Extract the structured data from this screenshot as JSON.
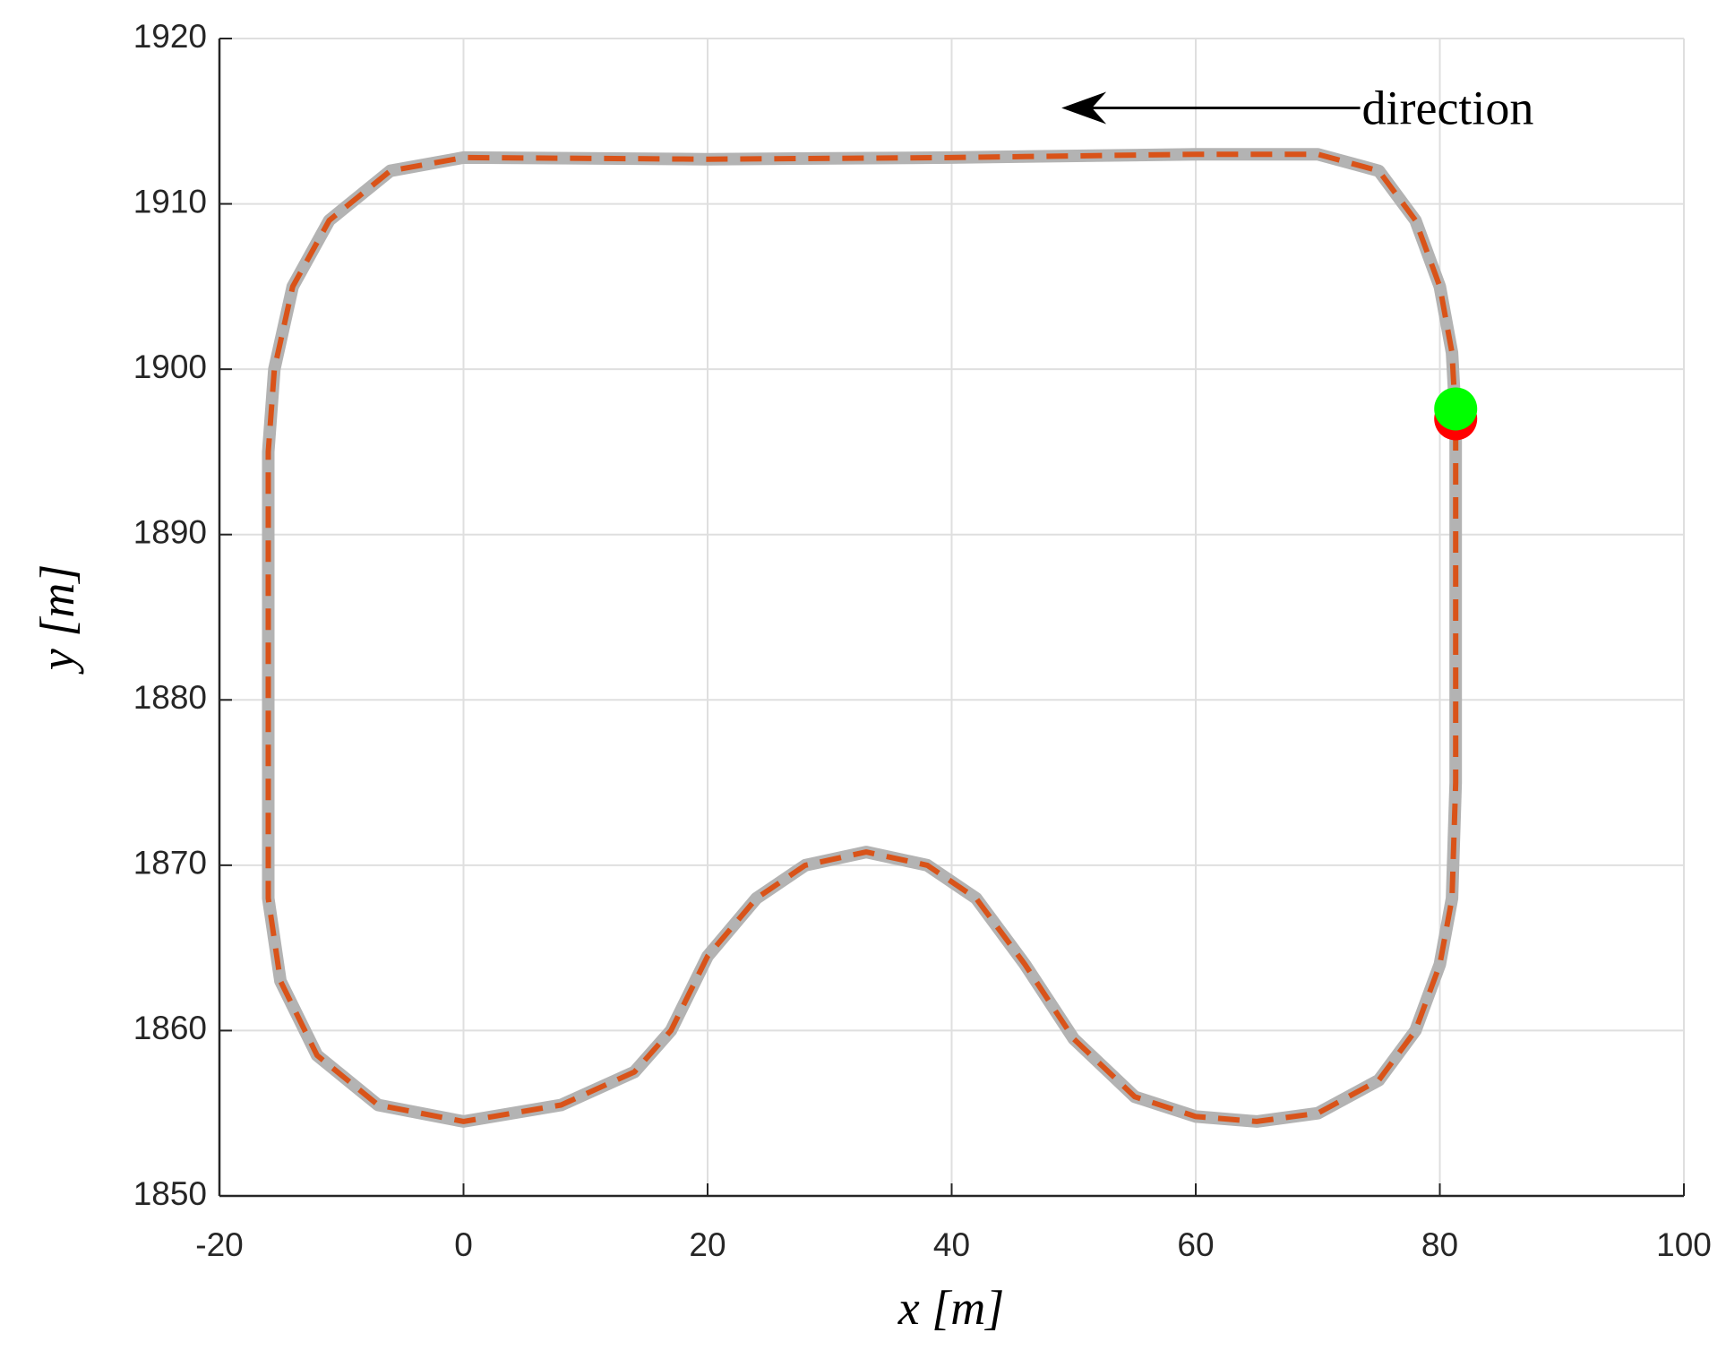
{
  "chart_data": {
    "type": "line",
    "xlabel": "x [m]",
    "ylabel": "y [m]",
    "x": [
      81.3,
      81,
      80,
      78,
      75,
      70,
      60,
      40,
      20,
      0,
      -6,
      -11,
      -14,
      -15.5,
      -16,
      -16,
      -16,
      -15,
      -12,
      -7,
      0,
      8,
      14,
      17,
      20,
      24,
      28,
      33,
      38,
      42,
      46,
      50,
      55,
      60,
      65,
      70,
      75,
      78,
      80,
      81,
      81.3,
      81.3,
      81.3
    ],
    "series": [
      {
        "color": "#b3b3b3",
        "style": "solid",
        "width": 14,
        "values": [
          1897,
          1901,
          1905,
          1909,
          1912,
          1913,
          1913,
          1912.8,
          1912.7,
          1912.8,
          1912,
          1909,
          1905,
          1900,
          1895,
          1880,
          1868,
          1863,
          1858.5,
          1855.5,
          1854.5,
          1855.5,
          1857.5,
          1860,
          1864.5,
          1868,
          1870,
          1870.8,
          1870,
          1868,
          1864,
          1859.5,
          1856,
          1854.8,
          1854.5,
          1855,
          1857,
          1860,
          1864,
          1868,
          1875,
          1885,
          1897
        ]
      },
      {
        "color": "#d95319",
        "style": "dashed",
        "width": 6,
        "values": [
          1897,
          1901,
          1905,
          1909,
          1912,
          1913,
          1913,
          1912.8,
          1912.7,
          1912.8,
          1912,
          1909,
          1905,
          1900,
          1895,
          1880,
          1868,
          1863,
          1858.5,
          1855.5,
          1854.5,
          1855.5,
          1857.5,
          1860,
          1864.5,
          1868,
          1870,
          1870.8,
          1870,
          1868,
          1864,
          1859.5,
          1856,
          1854.8,
          1854.5,
          1855,
          1857,
          1860,
          1864,
          1868,
          1875,
          1885,
          1897
        ]
      }
    ],
    "markers": [
      {
        "x": 81.3,
        "y": 1897,
        "color": "#ff0000"
      },
      {
        "x": 81.3,
        "y": 1897.6,
        "color": "#00ff00"
      }
    ],
    "annotation": {
      "text": "direction",
      "x": 72,
      "y": 1915.8,
      "arrow_to_x": 49
    },
    "xlim": [
      -20,
      100
    ],
    "xticks": [
      -20,
      0,
      20,
      40,
      60,
      80,
      100
    ],
    "ylim": [
      1850,
      1920
    ],
    "yticks": [
      1850,
      1860,
      1870,
      1880,
      1890,
      1900,
      1910,
      1920
    ],
    "grid": true
  }
}
